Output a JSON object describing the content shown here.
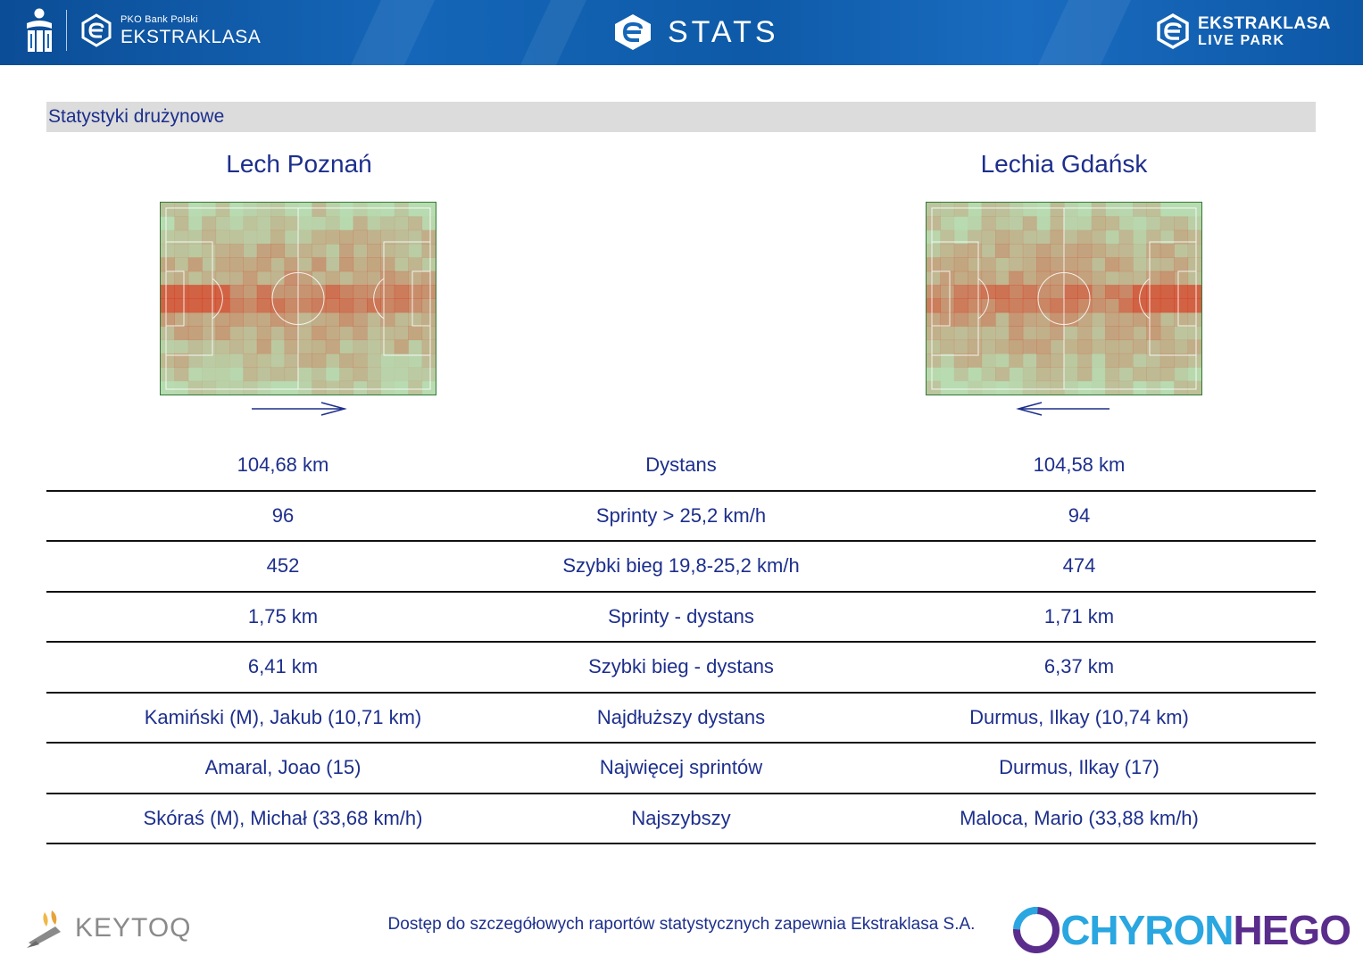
{
  "header": {
    "brand_small": "PKO Bank Polski",
    "brand_big": "EKSTRAKLASA",
    "title": "STATS",
    "live_park_line1": "EKSTRAKLASA",
    "live_park_line2": "LIVE PARK"
  },
  "section": {
    "title": "Statystyki drużynowe"
  },
  "teams": {
    "home": {
      "name": "Lech Poznań",
      "attack_direction": "right"
    },
    "away": {
      "name": "Lechia Gdańsk",
      "attack_direction": "left"
    }
  },
  "stats": [
    {
      "home": "104,68 km",
      "label": "Dystans",
      "away": "104,58 km"
    },
    {
      "home": "96",
      "label": "Sprinty > 25,2 km/h",
      "away": "94"
    },
    {
      "home": "452",
      "label": "Szybki bieg 19,8-25,2 km/h",
      "away": "474"
    },
    {
      "home": "1,75 km",
      "label": "Sprinty - dystans",
      "away": "1,71 km"
    },
    {
      "home": "6,41 km",
      "label": "Szybki bieg - dystans",
      "away": "6,37 km"
    },
    {
      "home": "Kamiński (M), Jakub (10,71 km)",
      "label": "Najdłuższy dystans",
      "away": "Durmus, Ilkay (10,74 km)"
    },
    {
      "home": "Amaral, Joao (15)",
      "label": "Najwięcej sprintów",
      "away": "Durmus, Ilkay (17)"
    },
    {
      "home": "Skóraś (M), Michał (33,68 km/h)",
      "label": "Najszybszy",
      "away": "Maloca, Mario (33,88 km/h)"
    }
  ],
  "footer": {
    "note": "Dostęp do szczegółowych raportów statystycznych zapewnia Ekstraklasa S.A.",
    "left_logo": "KEYTOQ",
    "right_logo_part1": "CHYRON",
    "right_logo_part2": "HEGO"
  },
  "colors": {
    "header_blue": "#1566b8",
    "text_navy": "#1d2f8c",
    "pitch_green": "#b8dbb1",
    "heat_red": "#d9391f"
  },
  "icons": [
    "pko-logo-icon",
    "ekstraklasa-badge-icon",
    "stats-e-icon",
    "live-park-icon",
    "arrow-right-icon",
    "arrow-left-icon",
    "keytoq-logo-icon",
    "chyronhego-logo-icon"
  ]
}
